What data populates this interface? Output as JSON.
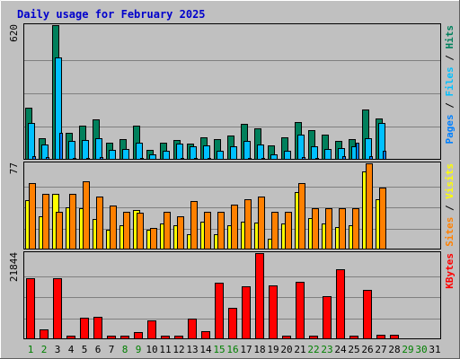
{
  "colors": {
    "background": "#c0c0c0",
    "panel": "#c0c0c0",
    "grid": "#808080",
    "title": "#0000cc",
    "hits": "#00805c",
    "files": "#00c0ff",
    "pages": "#0080ff",
    "visits": "#ffff00",
    "sites": "#ff8000",
    "kbytes": "#ff0000",
    "weekday_label": "#000000",
    "weekend_label": "#008000"
  },
  "chart_data": {
    "type": "bar",
    "title": "Daily usage for February 2025",
    "categories": [
      "1",
      "2",
      "3",
      "4",
      "5",
      "6",
      "7",
      "8",
      "9",
      "10",
      "11",
      "12",
      "13",
      "14",
      "15",
      "16",
      "17",
      "18",
      "19",
      "20",
      "21",
      "22",
      "23",
      "24",
      "25",
      "26",
      "27",
      "28",
      "29",
      "30",
      "31"
    ],
    "weekend_days": [
      "1",
      "2",
      "8",
      "9",
      "15",
      "16",
      "22",
      "23",
      "29",
      "30"
    ],
    "panels": [
      {
        "id": "hits",
        "ymax": 620,
        "ymax_label": "620",
        "legend": [
          {
            "text": "Hits",
            "color": "#00805c"
          },
          {
            "text": "/",
            "color": "#000000"
          },
          {
            "text": "Files",
            "color": "#00c0ff"
          },
          {
            "text": "/",
            "color": "#000000"
          },
          {
            "text": "Pages",
            "color": "#0080ff"
          }
        ],
        "series": [
          {
            "name": "Hits",
            "color": "#00805c",
            "values": [
              240,
              100,
              620,
              125,
              155,
              185,
              80,
              95,
              155,
              45,
              80,
              90,
              75,
              105,
              95,
              110,
              165,
              145,
              65,
              105,
              175,
              135,
              115,
              85,
              95,
              230,
              190,
              0,
              0,
              0,
              0
            ]
          },
          {
            "name": "Files",
            "color": "#00c0ff",
            "values": [
              170,
              70,
              470,
              85,
              90,
              100,
              45,
              50,
              80,
              25,
              40,
              75,
              60,
              65,
              40,
              60,
              85,
              70,
              25,
              40,
              115,
              60,
              50,
              55,
              60,
              100,
              170,
              0,
              0,
              0,
              0
            ]
          },
          {
            "name": "Pages",
            "color": "#0080ff",
            "values": [
              18,
              12,
              125,
              10,
              8,
              12,
              6,
              5,
              10,
              4,
              5,
              8,
              7,
              8,
              5,
              6,
              10,
              8,
              4,
              6,
              12,
              7,
              6,
              15,
              80,
              15,
              40,
              0,
              0,
              0,
              0
            ]
          }
        ]
      },
      {
        "id": "visits",
        "ymax": 77,
        "ymax_label": "77",
        "legend": [
          {
            "text": "Visits",
            "color": "#ffff00"
          },
          {
            "text": "/",
            "color": "#000000"
          },
          {
            "text": "Sites",
            "color": "#ff8000"
          }
        ],
        "series": [
          {
            "name": "Visits",
            "color": "#ffff00",
            "values": [
              44,
              30,
              50,
              38,
              37,
              27,
              18,
              22,
              35,
              18,
              23,
              22,
              14,
              25,
              14,
              22,
              25,
              24,
              10,
              23,
              51,
              28,
              23,
              20,
              22,
              70,
              45,
              0,
              0,
              0,
              0
            ]
          },
          {
            "name": "Sites",
            "color": "#ff8000",
            "values": [
              59,
              50,
              34,
              50,
              61,
              47,
              39,
              34,
              33,
              19,
              34,
              30,
              43,
              34,
              34,
              40,
              45,
              47,
              34,
              34,
              59,
              37,
              37,
              37,
              37,
              77,
              55,
              0,
              0,
              0,
              0
            ]
          }
        ]
      },
      {
        "id": "kbytes",
        "ymax": 21844,
        "ymax_label": "21844",
        "legend": [
          {
            "text": "KBytes",
            "color": "#ff0000"
          }
        ],
        "series": [
          {
            "name": "KBytes",
            "color": "#ff0000",
            "values": [
              15400,
              2600,
              15400,
              800,
              5400,
              5800,
              900,
              900,
              1800,
              4800,
              800,
              900,
              5300,
              2000,
              14400,
              7900,
              13500,
              21844,
              13700,
              1000,
              14600,
              900,
              10900,
              17700,
              900,
              12600,
              1100,
              1100,
              0,
              0,
              0
            ]
          }
        ]
      }
    ]
  }
}
